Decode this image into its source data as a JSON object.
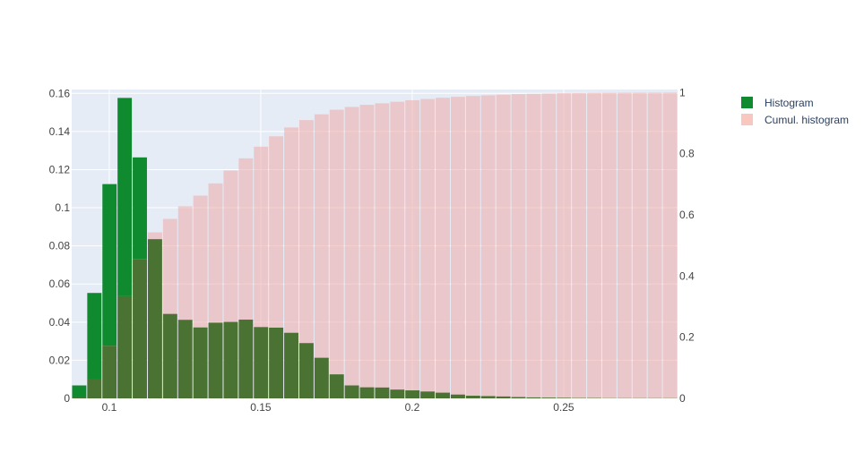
{
  "chart_data": {
    "type": "bar",
    "bin_start": 0.08759,
    "bin_width": 0.005,
    "x_range": [
      0.0876,
      0.2876
    ],
    "xticks": [
      {
        "value": 0.1,
        "label": "0.1"
      },
      {
        "value": 0.15,
        "label": "0.15"
      },
      {
        "value": 0.2,
        "label": "0.2"
      },
      {
        "value": 0.25,
        "label": "0.25"
      }
    ],
    "y_left": {
      "range": [
        0,
        0.162
      ],
      "ticks": [
        {
          "value": 0,
          "label": "0"
        },
        {
          "value": 0.02,
          "label": "0.02"
        },
        {
          "value": 0.04,
          "label": "0.04"
        },
        {
          "value": 0.06,
          "label": "0.06"
        },
        {
          "value": 0.08,
          "label": "0.08"
        },
        {
          "value": 0.1,
          "label": "0.1"
        },
        {
          "value": 0.12,
          "label": "0.12"
        },
        {
          "value": 0.14,
          "label": "0.14"
        },
        {
          "value": 0.16,
          "label": "0.16"
        }
      ]
    },
    "y_right": {
      "range": [
        0,
        1.01
      ],
      "ticks": [
        {
          "value": 0,
          "label": "0"
        },
        {
          "value": 0.2,
          "label": "0.2"
        },
        {
          "value": 0.4,
          "label": "0.4"
        },
        {
          "value": 0.6,
          "label": "0.6"
        },
        {
          "value": 0.8,
          "label": "0.8"
        },
        {
          "value": 1,
          "label": "1"
        }
      ]
    },
    "grid": true,
    "legend_position": "top-right",
    "series": [
      {
        "name": "Histogram",
        "axis": "left",
        "color": "#0f8a2f",
        "values": [
          0.0068,
          0.0553,
          0.1124,
          0.1576,
          0.1264,
          0.0835,
          0.0443,
          0.0412,
          0.0372,
          0.0397,
          0.0401,
          0.0413,
          0.0374,
          0.0371,
          0.0344,
          0.029,
          0.0213,
          0.0126,
          0.0068,
          0.0058,
          0.0057,
          0.0046,
          0.0042,
          0.0036,
          0.003,
          0.002,
          0.0014,
          0.0012,
          0.001,
          0.0007,
          0.0005,
          0.0004,
          0.0003,
          0.0002,
          0.0002,
          0.0001,
          0.0001,
          0.0001,
          0.0001,
          0.0001
        ]
      },
      {
        "name": "Cumul. histogram",
        "axis": "right",
        "color": "#f8c8c0",
        "values": [
          0.003,
          0.063,
          0.172,
          0.334,
          0.456,
          0.543,
          0.587,
          0.628,
          0.663,
          0.703,
          0.745,
          0.785,
          0.823,
          0.857,
          0.886,
          0.91,
          0.929,
          0.944,
          0.953,
          0.96,
          0.965,
          0.97,
          0.975,
          0.979,
          0.983,
          0.986,
          0.989,
          0.991,
          0.993,
          0.995,
          0.996,
          0.997,
          0.998,
          0.9985,
          0.999,
          0.9993,
          0.9996,
          0.9998,
          0.9999,
          1.0
        ]
      }
    ]
  },
  "colors": {
    "plot_bg": "#e5ecf6",
    "grid": "#ffffff",
    "overlap_tint": "#4a7232",
    "cumulative_fill": "rgba(239,170,165,0.55)"
  }
}
